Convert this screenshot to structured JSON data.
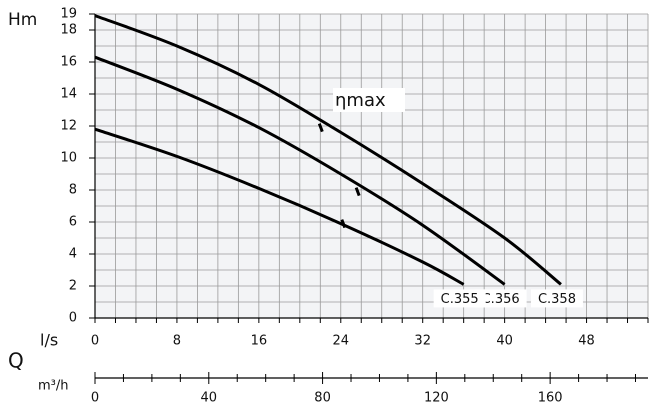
{
  "chart_data": {
    "type": "line",
    "ylabel": "Hm",
    "xlabel": "l/s",
    "x2title": "Q",
    "x2label": "m³/h",
    "xlim": [
      0,
      54
    ],
    "xticks": [
      0,
      8,
      16,
      24,
      32,
      40,
      48
    ],
    "xgrid": [
      0,
      2,
      4,
      6,
      8,
      10,
      12,
      14,
      16,
      18,
      20,
      22,
      24,
      26,
      28,
      30,
      32,
      34,
      36,
      38,
      40,
      42,
      44,
      46,
      48,
      50,
      52,
      54
    ],
    "ylim": [
      0,
      19
    ],
    "yticks": [
      0,
      2,
      4,
      6,
      8,
      10,
      12,
      14,
      16,
      18,
      19
    ],
    "ygrid": [
      0,
      1,
      2,
      3,
      4,
      5,
      6,
      7,
      8,
      9,
      10,
      11,
      12,
      13,
      14,
      15,
      16,
      17,
      18,
      19
    ],
    "x2lim": [
      0,
      194.4
    ],
    "x2ticks": [
      0,
      40,
      80,
      120,
      160
    ],
    "x2minorticks": [
      10,
      20,
      30,
      50,
      60,
      70,
      90,
      100,
      110,
      130,
      140,
      150,
      170,
      180,
      190
    ],
    "grid": true,
    "color": "#000000",
    "series": [
      {
        "name": "C.358",
        "x": [
          0,
          8,
          16,
          24,
          32,
          40,
          45.5
        ],
        "values": [
          18.9,
          17.0,
          14.6,
          11.6,
          8.4,
          5.0,
          2.1
        ]
      },
      {
        "name": "C.356",
        "x": [
          0,
          8,
          16,
          24,
          32,
          40
        ],
        "values": [
          16.3,
          14.3,
          11.9,
          9.0,
          5.8,
          2.1
        ]
      },
      {
        "name": "C.355",
        "x": [
          0,
          8,
          16,
          24,
          32,
          36
        ],
        "values": [
          11.8,
          10.1,
          8.1,
          5.9,
          3.5,
          2.1
        ]
      }
    ],
    "eta_max_label": "ηmax",
    "eta_max_points": {
      "x": [
        22,
        25.6,
        24.2
      ],
      "values": [
        11.9,
        7.9,
        5.9
      ]
    }
  }
}
